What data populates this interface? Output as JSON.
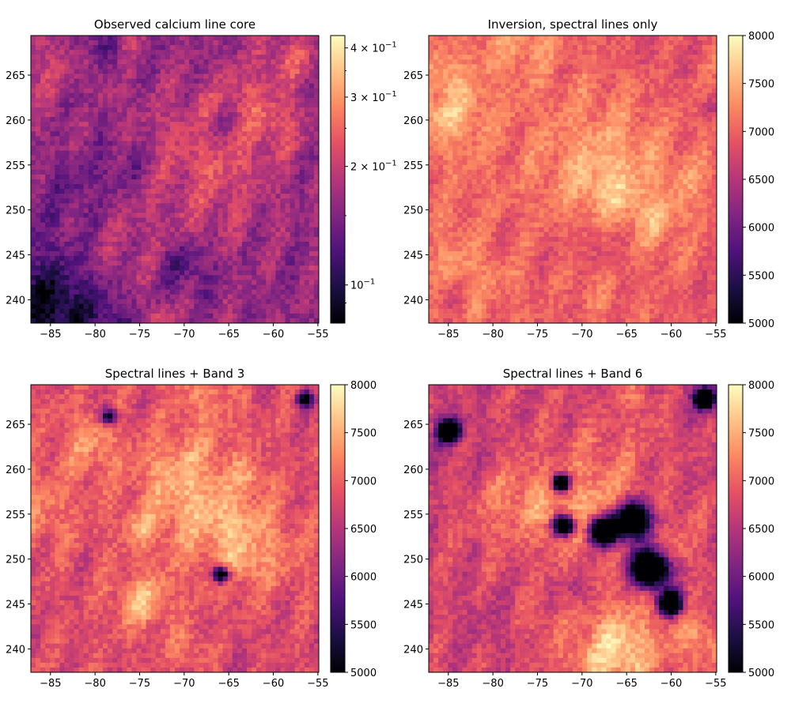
{
  "colormap": [
    "#000004",
    "#1c1044",
    "#4f127b",
    "#812581",
    "#b5367a",
    "#e55064",
    "#fb8761",
    "#fec287",
    "#fcfdbf"
  ],
  "chart_data": [
    {
      "type": "heatmap",
      "title": "Observed calcium line core",
      "xlim": [
        -87.2,
        -54.9
      ],
      "ylim": [
        237.4,
        269.4
      ],
      "xticks": [
        -85,
        -80,
        -75,
        -70,
        -65,
        -60,
        -55
      ],
      "yticks": [
        240,
        245,
        250,
        255,
        260,
        265
      ],
      "colorbar": {
        "scale": "log",
        "range": [
          0.08,
          0.43
        ],
        "ticks": [
          {
            "value": 0.1,
            "label": "10",
            "sup": "−1"
          },
          {
            "value": 0.2,
            "label": "2 × 10",
            "sup": "−1"
          },
          {
            "value": 0.3,
            "label": "3 × 10",
            "sup": "−1"
          },
          {
            "value": 0.4,
            "label": "4 × 10",
            "sup": "−1"
          }
        ]
      },
      "image": {
        "base": 0.42,
        "contrast": 0.45,
        "seed": 3,
        "bright_regions": 1.0,
        "dark_blobs": 0,
        "dark_bottom_left": true
      }
    },
    {
      "type": "heatmap",
      "title": "Inversion, spectral lines only",
      "xlim": [
        -87.2,
        -54.9
      ],
      "ylim": [
        237.4,
        269.4
      ],
      "xticks": [
        -85,
        -80,
        -75,
        -70,
        -65,
        -60,
        -55
      ],
      "yticks": [
        240,
        245,
        250,
        255,
        260,
        265
      ],
      "colorbar": {
        "scale": "linear",
        "range": [
          5000,
          8000
        ],
        "ticks": [
          {
            "value": 5000,
            "label": "5000"
          },
          {
            "value": 5500,
            "label": "5500"
          },
          {
            "value": 6000,
            "label": "6000"
          },
          {
            "value": 6500,
            "label": "6500"
          },
          {
            "value": 7000,
            "label": "7000"
          },
          {
            "value": 7500,
            "label": "7500"
          },
          {
            "value": 8000,
            "label": "8000"
          }
        ]
      },
      "image": {
        "base": 0.66,
        "contrast": 0.35,
        "seed": 7,
        "bright_regions": 0.7,
        "dark_blobs": 0,
        "dark_bottom_left": false
      }
    },
    {
      "type": "heatmap",
      "title": "Spectral lines + Band 3",
      "xlim": [
        -87.2,
        -54.9
      ],
      "ylim": [
        237.4,
        269.4
      ],
      "xticks": [
        -85,
        -80,
        -75,
        -70,
        -65,
        -60,
        -55
      ],
      "yticks": [
        240,
        245,
        250,
        255,
        260,
        265
      ],
      "colorbar": {
        "scale": "linear",
        "range": [
          5000,
          8000
        ],
        "ticks": [
          {
            "value": 5000,
            "label": "5000"
          },
          {
            "value": 5500,
            "label": "5500"
          },
          {
            "value": 6000,
            "label": "6000"
          },
          {
            "value": 6500,
            "label": "6500"
          },
          {
            "value": 7000,
            "label": "7000"
          },
          {
            "value": 7500,
            "label": "7500"
          },
          {
            "value": 8000,
            "label": "8000"
          }
        ]
      },
      "image": {
        "base": 0.6,
        "contrast": 0.4,
        "seed": 11,
        "bright_regions": 0.8,
        "dark_blobs": 1,
        "dark_bottom_left": false
      }
    },
    {
      "type": "heatmap",
      "title": "Spectral lines + Band 6",
      "xlim": [
        -87.2,
        -54.9
      ],
      "ylim": [
        237.4,
        269.4
      ],
      "xticks": [
        -85,
        -80,
        -75,
        -70,
        -65,
        -60,
        -55
      ],
      "yticks": [
        240,
        245,
        250,
        255,
        260,
        265
      ],
      "colorbar": {
        "scale": "linear",
        "range": [
          5000,
          8000
        ],
        "ticks": [
          {
            "value": 5000,
            "label": "5000"
          },
          {
            "value": 5500,
            "label": "5500"
          },
          {
            "value": 6000,
            "label": "6000"
          },
          {
            "value": 6500,
            "label": "6500"
          },
          {
            "value": 7000,
            "label": "7000"
          },
          {
            "value": 7500,
            "label": "7500"
          },
          {
            "value": 8000,
            "label": "8000"
          }
        ]
      },
      "image": {
        "base": 0.58,
        "contrast": 0.4,
        "seed": 19,
        "bright_regions": 0.8,
        "dark_blobs": 2,
        "dark_bottom_left": false
      }
    }
  ]
}
